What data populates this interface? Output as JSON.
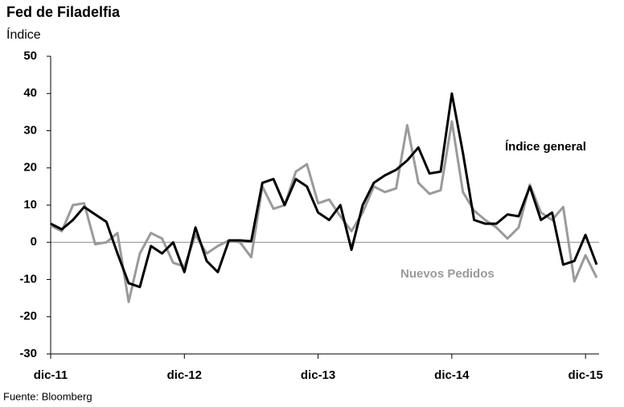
{
  "chart_data": {
    "type": "line",
    "title": "Fed de Filadelfia",
    "y_label": "Índice",
    "source": "Fuente: Bloomberg",
    "categories": [
      "dic-11",
      null,
      null,
      null,
      null,
      null,
      null,
      null,
      null,
      null,
      null,
      null,
      "dic-12",
      null,
      null,
      null,
      null,
      null,
      null,
      null,
      null,
      null,
      null,
      null,
      "dic-13",
      null,
      null,
      null,
      null,
      null,
      null,
      null,
      null,
      null,
      null,
      null,
      "dic-14",
      null,
      null,
      null,
      null,
      null,
      null,
      null,
      null,
      null,
      null,
      null,
      "dic-15",
      null
    ],
    "series": [
      {
        "name": "Índice general",
        "color": "#000000",
        "values": [
          5,
          3.5,
          6,
          9.5,
          7.5,
          5.5,
          -3,
          -11,
          -12,
          -1,
          -3,
          0,
          -8,
          4,
          -5,
          -8,
          0.5,
          0.5,
          0.3,
          16,
          17,
          10,
          17,
          15,
          8,
          6,
          10,
          -2,
          10,
          16,
          18,
          19.5,
          22,
          25.5,
          18.5,
          19,
          40,
          24,
          6,
          5,
          5,
          7.5,
          7,
          15,
          6,
          8,
          -6,
          -5,
          2,
          -6
        ]
      },
      {
        "name": "Nuevos Pedidos",
        "color": "#9a9a9a",
        "values": [
          4.5,
          3,
          10,
          10.5,
          -0.5,
          0,
          2.5,
          -16,
          -3,
          2.5,
          1,
          -5.5,
          -6.5,
          2,
          -3,
          -1,
          0.5,
          0,
          -4,
          15,
          9,
          10,
          19,
          21,
          10.5,
          11.5,
          7,
          3,
          8,
          15,
          13.5,
          14.5,
          31.5,
          16,
          13,
          14,
          32.5,
          13.5,
          8.5,
          6,
          4,
          1,
          4,
          15.5,
          8,
          6,
          9.5,
          -10.5,
          -3.5,
          -9.5
        ]
      }
    ],
    "ylim": [
      -30,
      50
    ],
    "yticks": [
      -30,
      -20,
      -10,
      0,
      10,
      20,
      30,
      40,
      50
    ]
  }
}
